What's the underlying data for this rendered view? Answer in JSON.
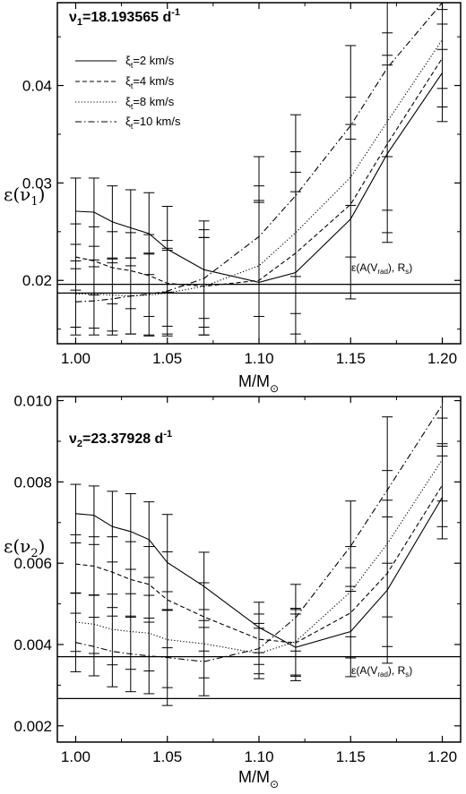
{
  "chart_data": [
    {
      "type": "line",
      "title_main": "ν",
      "title_sub": "1",
      "title_rest": "=18.193565 d",
      "title_sup": "-1",
      "ylabel_main": "ε(ν",
      "ylabel_sub": "1",
      "ylabel_end": ")",
      "xlabel_main": "M/M",
      "xlabel_sub": "⊙",
      "xlim": [
        0.99,
        1.21
      ],
      "ylim": [
        0.0135,
        0.0485
      ],
      "xticks": [
        "1.00",
        "1.05",
        "1.10",
        "1.15",
        "1.20"
      ],
      "xtick_values": [
        1.0,
        1.05,
        1.1,
        1.15,
        1.2
      ],
      "yticks": [
        "0.02",
        "0.03",
        "0.04"
      ],
      "ytick_values": [
        0.02,
        0.03,
        0.04
      ],
      "x": [
        1.0,
        1.01,
        1.02,
        1.03,
        1.04,
        1.05,
        1.07,
        1.1,
        1.12,
        1.15,
        1.17,
        1.2
      ],
      "series": [
        {
          "name_main": "ξ",
          "name_sub": "t",
          "name_rest": "=2 km/s",
          "dash": "solid",
          "values": [
            0.0271,
            0.027,
            0.026,
            0.0254,
            0.0248,
            0.0232,
            0.0211,
            0.0198,
            0.0208,
            0.0263,
            0.033,
            0.0413
          ],
          "err": [
            0.0034,
            0.0035,
            0.0037,
            0.0039,
            0.0042,
            0.0044,
            0.005,
            0.0082,
            0.0083,
            0.0082,
            0.0091,
            0.005
          ]
        },
        {
          "name_main": "ξ",
          "name_sub": "t",
          "name_rest": "=4 km/s",
          "dash": "dashed",
          "values": [
            0.0224,
            0.022,
            0.0213,
            0.021,
            0.0205,
            0.0197,
            0.0194,
            0.02,
            0.0228,
            0.0278,
            0.034,
            0.0428
          ]
        },
        {
          "name_main": "ξ",
          "name_sub": "t",
          "name_rest": "=8 km/s",
          "dash": "dotted",
          "values": [
            0.0186,
            0.0186,
            0.0185,
            0.0184,
            0.0185,
            0.0187,
            0.0194,
            0.0215,
            0.0249,
            0.0306,
            0.0363,
            0.0447
          ]
        },
        {
          "name_main": "ξ",
          "name_sub": "t",
          "name_rest": "=10 km/s",
          "dash": "dashdot",
          "values": [
            0.0178,
            0.0179,
            0.0181,
            0.0184,
            0.0186,
            0.0189,
            0.0202,
            0.0245,
            0.0287,
            0.0359,
            0.0418,
            0.0487
          ]
        }
      ],
      "hlines": [
        0.0187,
        0.0196
      ],
      "annotation": {
        "main": "ε(A(V",
        "sub": "rad",
        "rest": "), R",
        "sub2": "s",
        "end": ")"
      },
      "legend_loc": "top-left"
    },
    {
      "type": "line",
      "title_main": "ν",
      "title_sub": "2",
      "title_rest": "=23.37928 d",
      "title_sup": "-1",
      "ylabel_main": "ε(ν",
      "ylabel_sub": "2",
      "ylabel_end": ")",
      "xlabel_main": "M/M",
      "xlabel_sub": "⊙",
      "xlim": [
        0.99,
        1.21
      ],
      "ylim": [
        0.0016,
        0.0101
      ],
      "xticks": [
        "1.00",
        "1.05",
        "1.10",
        "1.15",
        "1.20"
      ],
      "xtick_values": [
        1.0,
        1.05,
        1.1,
        1.15,
        1.2
      ],
      "yticks": [
        "0.002",
        "0.004",
        "0.006",
        "0.008",
        "0.010"
      ],
      "ytick_values": [
        0.002,
        0.004,
        0.006,
        0.008,
        0.01
      ],
      "x": [
        1.0,
        1.01,
        1.02,
        1.03,
        1.04,
        1.05,
        1.07,
        1.1,
        1.12,
        1.15,
        1.17,
        1.2
      ],
      "series": [
        {
          "dash": "solid",
          "values": [
            0.00722,
            0.00718,
            0.0069,
            0.00678,
            0.00658,
            0.00602,
            0.00543,
            0.00442,
            0.00393,
            0.00432,
            0.00534,
            0.00762
          ],
          "err": [
            0.00072,
            0.00072,
            0.00087,
            0.00093,
            0.00093,
            0.00118,
            0.00084,
            0.00062,
            0.00082,
            0.00111,
            0.0018,
            0.00102
          ]
        },
        {
          "dash": "dashed",
          "values": [
            0.00598,
            0.00593,
            0.00578,
            0.0056,
            0.00548,
            0.0051,
            0.00468,
            0.00413,
            0.00404,
            0.00478,
            0.00575,
            0.00792
          ]
        },
        {
          "dash": "dotted",
          "values": [
            0.00455,
            0.0045,
            0.00437,
            0.00432,
            0.00428,
            0.00412,
            0.00402,
            0.00378,
            0.00407,
            0.0053,
            0.00648,
            0.00855
          ]
        },
        {
          "dash": "dashdot",
          "values": [
            0.00405,
            0.00395,
            0.00383,
            0.00377,
            0.00372,
            0.00368,
            0.00358,
            0.0039,
            0.00466,
            0.00642,
            0.0078,
            0.0099
          ]
        }
      ],
      "hlines": [
        0.0037,
        0.00267
      ],
      "annotation": {
        "main": "ε(A(V",
        "sub": "rad",
        "rest": "), R",
        "sub2": "s",
        "end": ")"
      }
    }
  ]
}
